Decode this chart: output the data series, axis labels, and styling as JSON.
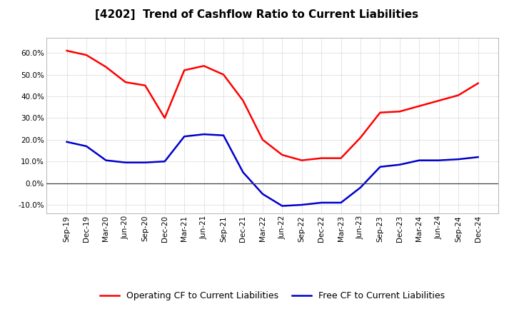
{
  "title": "[4202]  Trend of Cashflow Ratio to Current Liabilities",
  "x_labels": [
    "Sep-19",
    "Dec-19",
    "Mar-20",
    "Jun-20",
    "Sep-20",
    "Dec-20",
    "Mar-21",
    "Jun-21",
    "Sep-21",
    "Dec-21",
    "Mar-22",
    "Jun-22",
    "Sep-22",
    "Dec-22",
    "Mar-23",
    "Jun-23",
    "Sep-23",
    "Dec-23",
    "Mar-24",
    "Jun-24",
    "Sep-24",
    "Dec-24"
  ],
  "operating_cf": [
    61.0,
    59.0,
    53.5,
    46.5,
    45.0,
    30.0,
    52.0,
    54.0,
    50.0,
    38.0,
    20.0,
    13.0,
    10.5,
    11.5,
    11.5,
    21.0,
    32.5,
    33.0,
    35.5,
    38.0,
    40.5,
    46.0
  ],
  "free_cf": [
    19.0,
    17.0,
    10.5,
    9.5,
    9.5,
    10.0,
    21.5,
    22.5,
    22.0,
    5.0,
    -5.0,
    -10.5,
    -10.0,
    -9.0,
    -9.0,
    -2.0,
    7.5,
    8.5,
    10.5,
    10.5,
    11.0,
    12.0
  ],
  "operating_color": "#FF0000",
  "free_color": "#0000CC",
  "ylim": [
    -14.0,
    67.0
  ],
  "yticks": [
    -10.0,
    0.0,
    10.0,
    20.0,
    30.0,
    40.0,
    50.0,
    60.0
  ],
  "background_color": "#FFFFFF",
  "plot_bg_color": "#FFFFFF",
  "grid_color": "#999999",
  "legend_op": "Operating CF to Current Liabilities",
  "legend_free": "Free CF to Current Liabilities",
  "title_fontsize": 11,
  "axis_fontsize": 7.5,
  "legend_fontsize": 9,
  "linewidth": 1.8
}
